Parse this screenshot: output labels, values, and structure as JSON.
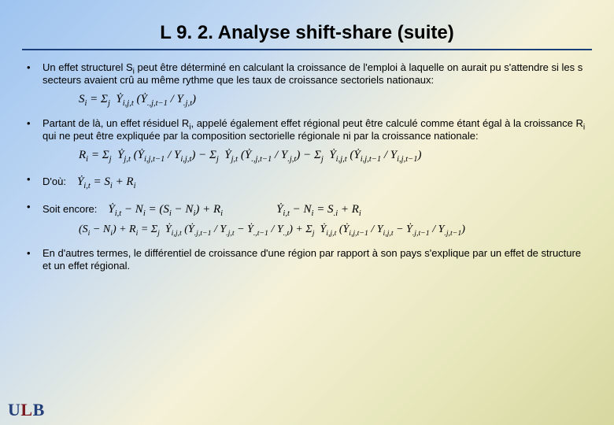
{
  "title": "L 9. 2. Analyse shift-share (suite)",
  "bullets": {
    "b1_part1": "Un effet structurel S",
    "b1_sub": "i",
    "b1_part2": " peut être déterminé en calculant la croissance de l'emploi à laquelle on aurait pu s'attendre si les s secteurs avaient crû au même rythme que les taux de croissance sectoriels nationaux:",
    "b2_part1": "Partant de là, un effet résiduel R",
    "b2_sub1": "i",
    "b2_part2": ", appelé également effet régional peut être calculé comme étant égal à la croissance R",
    "b2_sub2": "i",
    "b2_part3": " qui ne peut être expliquée par la composition sectorielle régionale ni par la croissance nationale:",
    "b3": "D'où:",
    "b4": "Soit encore:",
    "b5": "En d'autres termes, le différentiel de croissance d'une région par rapport à son pays s'explique par un effet de structure et un effet régional."
  },
  "equations": {
    "eq1": "S<span class='sub2'>i</span> = Σ<span class='sub2'>j</span>&nbsp; Ẏ<span class='sub2'>i,j,t</span> (Ẏ<span class='sub2'>.,j,t−1</span> / Y<span class='sub2'>.j,t</span>)",
    "eq2": "R<span class='sub2'>i</span> = Σ<span class='sub2'>j</span>&nbsp; Ẏ<span class='sub2'>j,t</span> (Ẏ<span class='sub2'>i,j,t−1</span> / Y<span class='sub2'>i,j,t</span>) − Σ<span class='sub2'>j</span>&nbsp; Ẏ<span class='sub2'>j,t</span> (Ẏ<span class='sub2'>.,j,t−1</span> / Y<span class='sub2'>.j,t</span>) − Σ<span class='sub2'>j</span>&nbsp; Ẏ<span class='sub2'>i,j,t</span> (Ẏ<span class='sub2'>i,j,t−1</span> / Y<span class='sub2'>i,j,t−1</span>)",
    "eq3": "Ẏ<span class='sub2'>i,t</span> = S<span class='sub2'>i</span> + R<span class='sub2'>i</span>",
    "eq4a": "Ẏ<span class='sub2'>i,t</span> − N<span class='sub2'>i</span> = (S<span class='sub2'>i</span> − N<span class='sub2'>i</span>) + R<span class='sub2'>i</span>",
    "eq4b": "Ẏ<span class='sub2'>i,t</span> − N<span class='sub2'>i</span> = S<span class='sub2'>.i</span> + R<span class='sub2'>i</span>",
    "eq5": "(S<span class='sub2'>i</span> − N<span class='sub2'>i</span>) + R<span class='sub2'>i</span> = Σ<span class='sub2'>j</span>&nbsp; Ẏ<span class='sub2'>i,j,t</span> (Ẏ<span class='sub2'>.j,t−1</span> / Y<span class='sub2'>.j,t</span> − Ẏ<span class='sub2'>.,t−1</span> / Y<span class='sub2'>.,t</span>) + Σ<span class='sub2'>j</span>&nbsp; Ẏ<span class='sub2'>i,j,t</span> (Ẏ<span class='sub2'>i,j,t−1</span> / Y<span class='sub2'>i,j,t</span> − Ẏ<span class='sub2'>.j,t−1</span> / Y<span class='sub2'>.j,t−1</span>)"
  },
  "logo": {
    "u": "U",
    "l": "L",
    "b": "B"
  },
  "colors": {
    "rule": "#1b3f7a",
    "text": "#000000"
  }
}
